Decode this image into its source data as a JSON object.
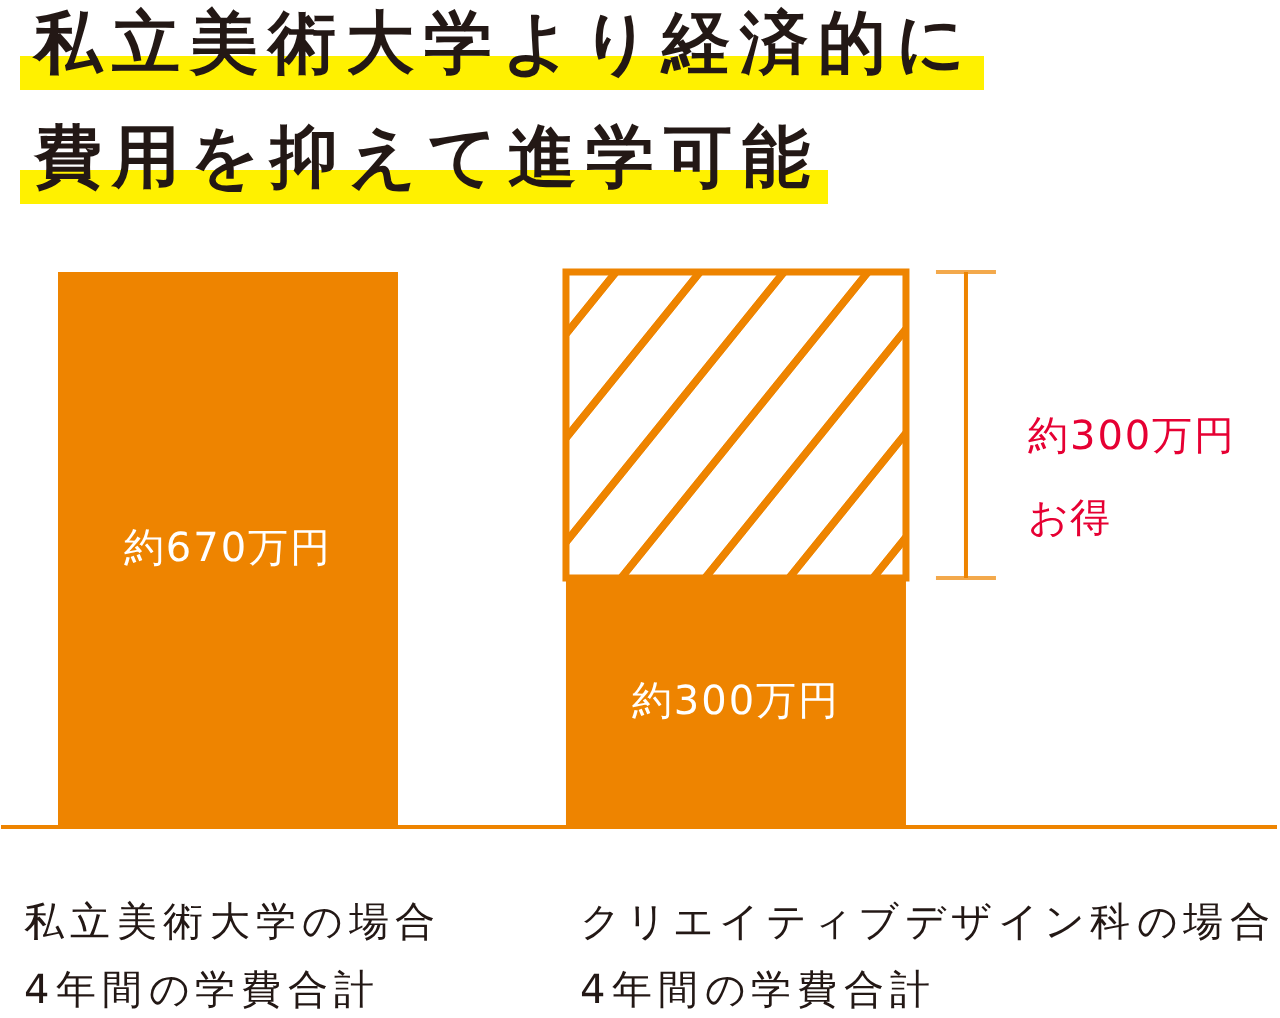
{
  "chart_data": {
    "type": "bar",
    "title": "私立美術大学より経済的に費用を抑えて進学可能",
    "categories": [
      "私立美術大学の場合\n4年間の学費合計",
      "クリエイティブデザイン科の場合\n4年間の学費合計"
    ],
    "stacked": true,
    "series": [
      {
        "color": "#ee8400",
        "values": [
          670,
          300
        ],
        "value_labels": [
          "約670万円",
          "約300万円"
        ]
      },
      {
        "color": "#ee8400",
        "values": [
          null,
          370
        ]
      }
    ],
    "annotations": [
      "約300万円お得"
    ],
    "tick_labels": "x"
  }
}
